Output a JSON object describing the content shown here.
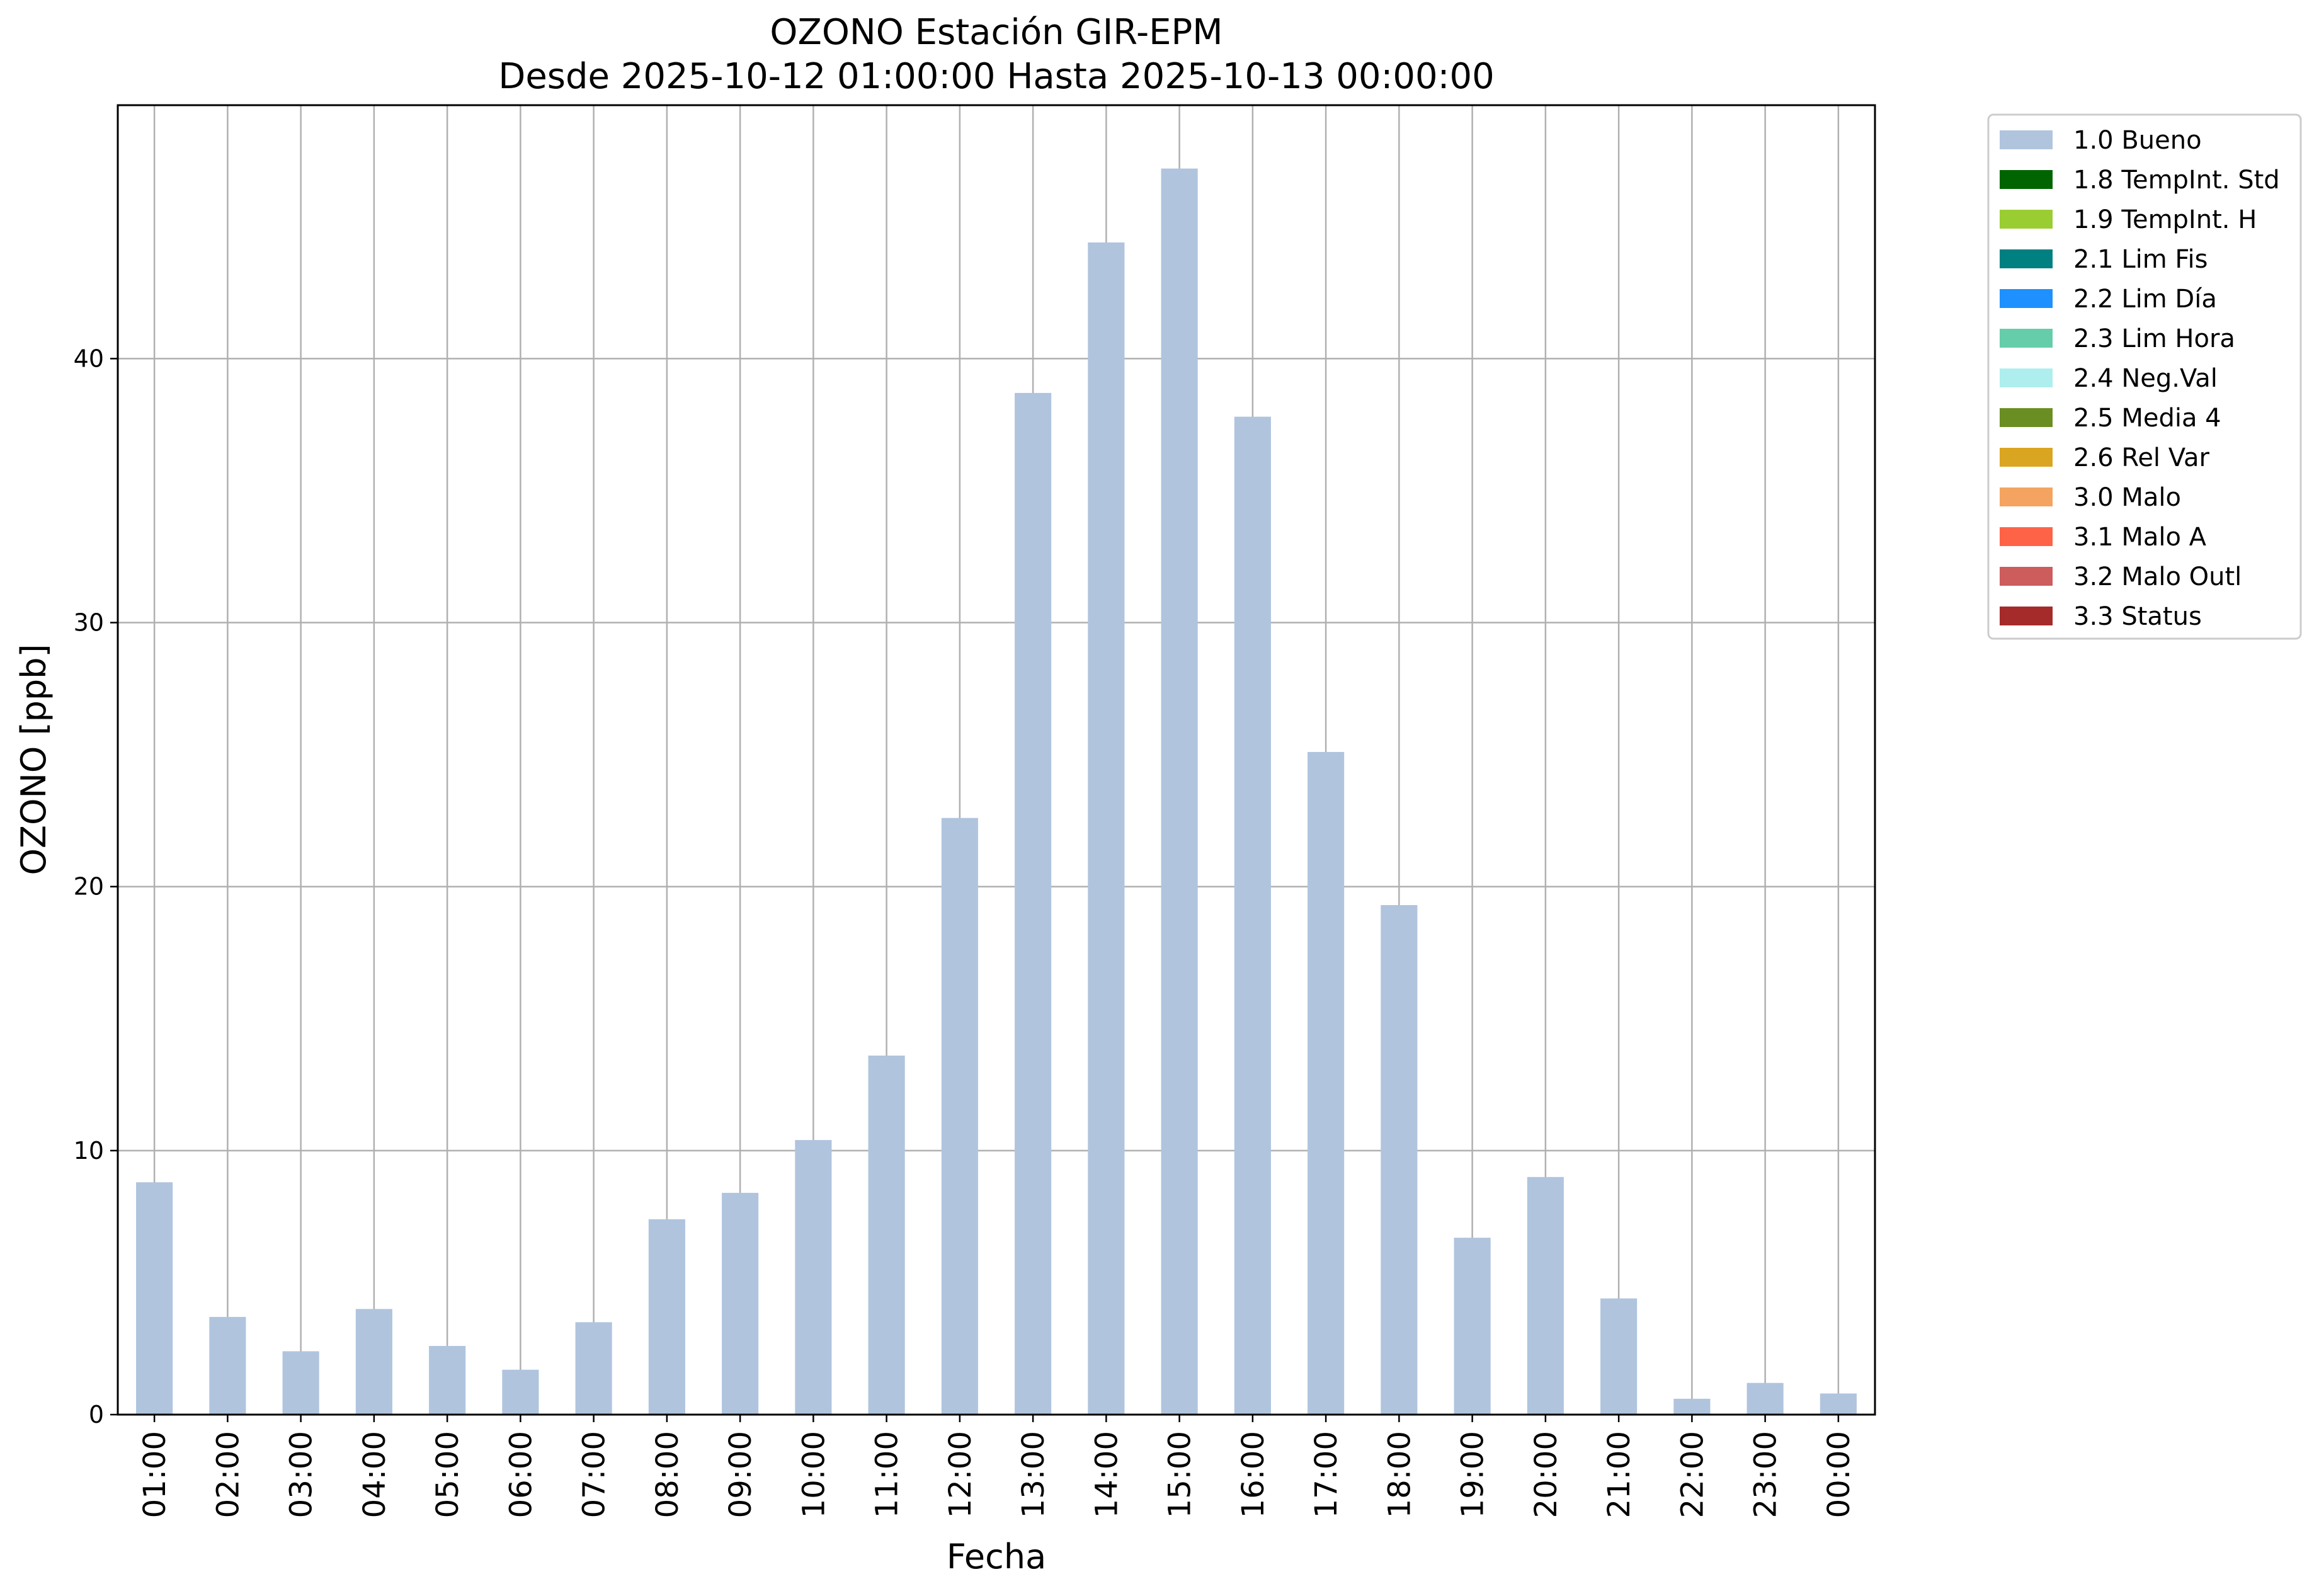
{
  "chart_data": {
    "type": "bar",
    "title": "OZONO Estación GIR-EPM",
    "subtitle": "Desde 2025-10-12 01:00:00 Hasta 2025-10-13 00:00:00",
    "xlabel": "Fecha",
    "ylabel": "OZONO [ppb]",
    "ylim": [
      0,
      49.6
    ],
    "yticks": [
      0,
      10,
      20,
      30,
      40
    ],
    "grid": true,
    "legend_position": "outside top-right",
    "categories": [
      "01:00",
      "02:00",
      "03:00",
      "04:00",
      "05:00",
      "06:00",
      "07:00",
      "08:00",
      "09:00",
      "10:00",
      "11:00",
      "12:00",
      "13:00",
      "14:00",
      "15:00",
      "16:00",
      "17:00",
      "18:00",
      "19:00",
      "20:00",
      "21:00",
      "22:00",
      "23:00",
      "00:00"
    ],
    "series": [
      {
        "name": "1.0 Bueno",
        "color": "#b0c4de",
        "values": [
          8.8,
          3.7,
          2.4,
          4.0,
          2.6,
          1.7,
          3.5,
          7.4,
          8.4,
          10.4,
          13.6,
          22.6,
          38.7,
          44.4,
          47.2,
          37.8,
          25.1,
          19.3,
          6.7,
          9.0,
          4.4,
          0.6,
          1.2,
          0.8
        ]
      }
    ],
    "legend": [
      {
        "label": "1.0 Bueno",
        "color": "#b0c4de"
      },
      {
        "label": "1.8 TempInt. Std",
        "color": "#006400"
      },
      {
        "label": "1.9 TempInt. H",
        "color": "#9acd32"
      },
      {
        "label": "2.1 Lim Fis",
        "color": "#008080"
      },
      {
        "label": "2.2 Lim Día",
        "color": "#1e90ff"
      },
      {
        "label": "2.3 Lim Hora",
        "color": "#66cdaa"
      },
      {
        "label": "2.4 Neg.Val",
        "color": "#afeeee"
      },
      {
        "label": "2.5 Media 4",
        "color": "#6b8e23"
      },
      {
        "label": "2.6 Rel Var",
        "color": "#daa520"
      },
      {
        "label": "3.0 Malo",
        "color": "#f4a460"
      },
      {
        "label": "3.1 Malo A",
        "color": "#ff6347"
      },
      {
        "label": "3.2 Malo Outl",
        "color": "#cd5c5c"
      },
      {
        "label": "3.3 Status",
        "color": "#a52a2a"
      }
    ]
  }
}
